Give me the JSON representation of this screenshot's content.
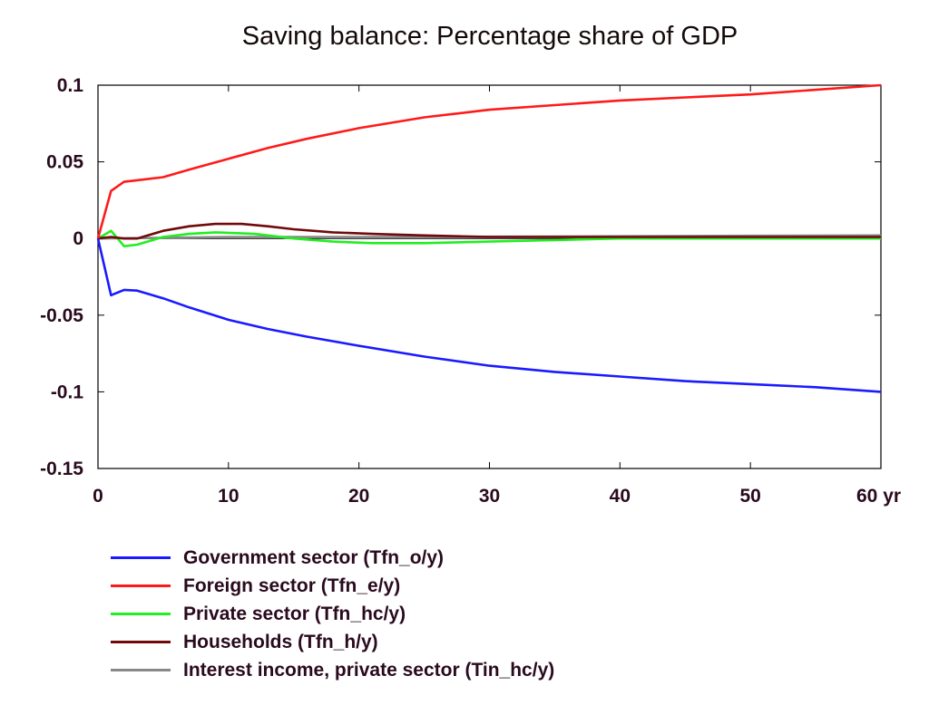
{
  "chart_data": {
    "type": "line",
    "title": "Saving balance: Percentage share of GDP",
    "xlabel": "",
    "ylabel": "",
    "xlim": [
      0,
      60
    ],
    "ylim": [
      -0.15,
      0.1
    ],
    "x_ticks": [
      "0",
      "10",
      "20",
      "30",
      "40",
      "50",
      "60 yr"
    ],
    "y_ticks": [
      "0.1",
      "0.05",
      "0",
      "-0.05",
      "-0.1",
      "-0.15"
    ],
    "legend_position": "bottom-left",
    "grid": false,
    "series": [
      {
        "name": "Government sector (Tfn_o/y)",
        "color": "#1a1aff",
        "points": [
          [
            0,
            0
          ],
          [
            1,
            -0.037
          ],
          [
            2,
            -0.0335
          ],
          [
            3,
            -0.034
          ],
          [
            5,
            -0.039
          ],
          [
            7,
            -0.045
          ],
          [
            10,
            -0.053
          ],
          [
            13,
            -0.059
          ],
          [
            16,
            -0.064
          ],
          [
            20,
            -0.07
          ],
          [
            25,
            -0.077
          ],
          [
            30,
            -0.083
          ],
          [
            35,
            -0.087
          ],
          [
            40,
            -0.09
          ],
          [
            45,
            -0.093
          ],
          [
            50,
            -0.095
          ],
          [
            55,
            -0.097
          ],
          [
            60,
            -0.1
          ]
        ]
      },
      {
        "name": "Foreign sector (Tfn_e/y)",
        "color": "#ff1a1a",
        "points": [
          [
            0,
            0
          ],
          [
            1,
            0.031
          ],
          [
            2,
            0.037
          ],
          [
            3,
            0.038
          ],
          [
            5,
            0.04
          ],
          [
            7,
            0.045
          ],
          [
            10,
            0.052
          ],
          [
            13,
            0.059
          ],
          [
            16,
            0.065
          ],
          [
            20,
            0.072
          ],
          [
            25,
            0.079
          ],
          [
            30,
            0.084
          ],
          [
            35,
            0.087
          ],
          [
            40,
            0.09
          ],
          [
            45,
            0.092
          ],
          [
            50,
            0.094
          ],
          [
            55,
            0.097
          ],
          [
            60,
            0.1
          ]
        ]
      },
      {
        "name": "Private sector (Tfn_hc/y)",
        "color": "#22ee22",
        "points": [
          [
            0,
            0
          ],
          [
            1,
            0.005
          ],
          [
            2,
            -0.005
          ],
          [
            3,
            -0.004
          ],
          [
            5,
            0.001
          ],
          [
            7,
            0.003
          ],
          [
            9,
            0.004
          ],
          [
            12,
            0.003
          ],
          [
            15,
            0.0
          ],
          [
            18,
            -0.002
          ],
          [
            21,
            -0.003
          ],
          [
            25,
            -0.003
          ],
          [
            30,
            -0.002
          ],
          [
            35,
            -0.001
          ],
          [
            40,
            0.0
          ],
          [
            50,
            0.0
          ],
          [
            60,
            0.0
          ]
        ]
      },
      {
        "name": "Households (Tfn_h/y)",
        "color": "#700a0a",
        "points": [
          [
            0,
            0
          ],
          [
            1,
            0.001
          ],
          [
            2,
            0.0
          ],
          [
            3,
            0.0
          ],
          [
            5,
            0.005
          ],
          [
            7,
            0.008
          ],
          [
            9,
            0.0095
          ],
          [
            11,
            0.0095
          ],
          [
            13,
            0.008
          ],
          [
            15,
            0.006
          ],
          [
            18,
            0.004
          ],
          [
            21,
            0.003
          ],
          [
            25,
            0.002
          ],
          [
            30,
            0.001
          ],
          [
            40,
            0.001
          ],
          [
            50,
            0.001
          ],
          [
            60,
            0.001
          ]
        ]
      },
      {
        "name": "Interest income, private sector (Tin_hc/y)",
        "color": "#888888",
        "points": [
          [
            0,
            0
          ],
          [
            5,
            0.0005
          ],
          [
            10,
            0.001
          ],
          [
            20,
            0.001
          ],
          [
            30,
            0.0012
          ],
          [
            40,
            0.0015
          ],
          [
            50,
            0.0018
          ],
          [
            60,
            0.002
          ]
        ]
      }
    ]
  }
}
